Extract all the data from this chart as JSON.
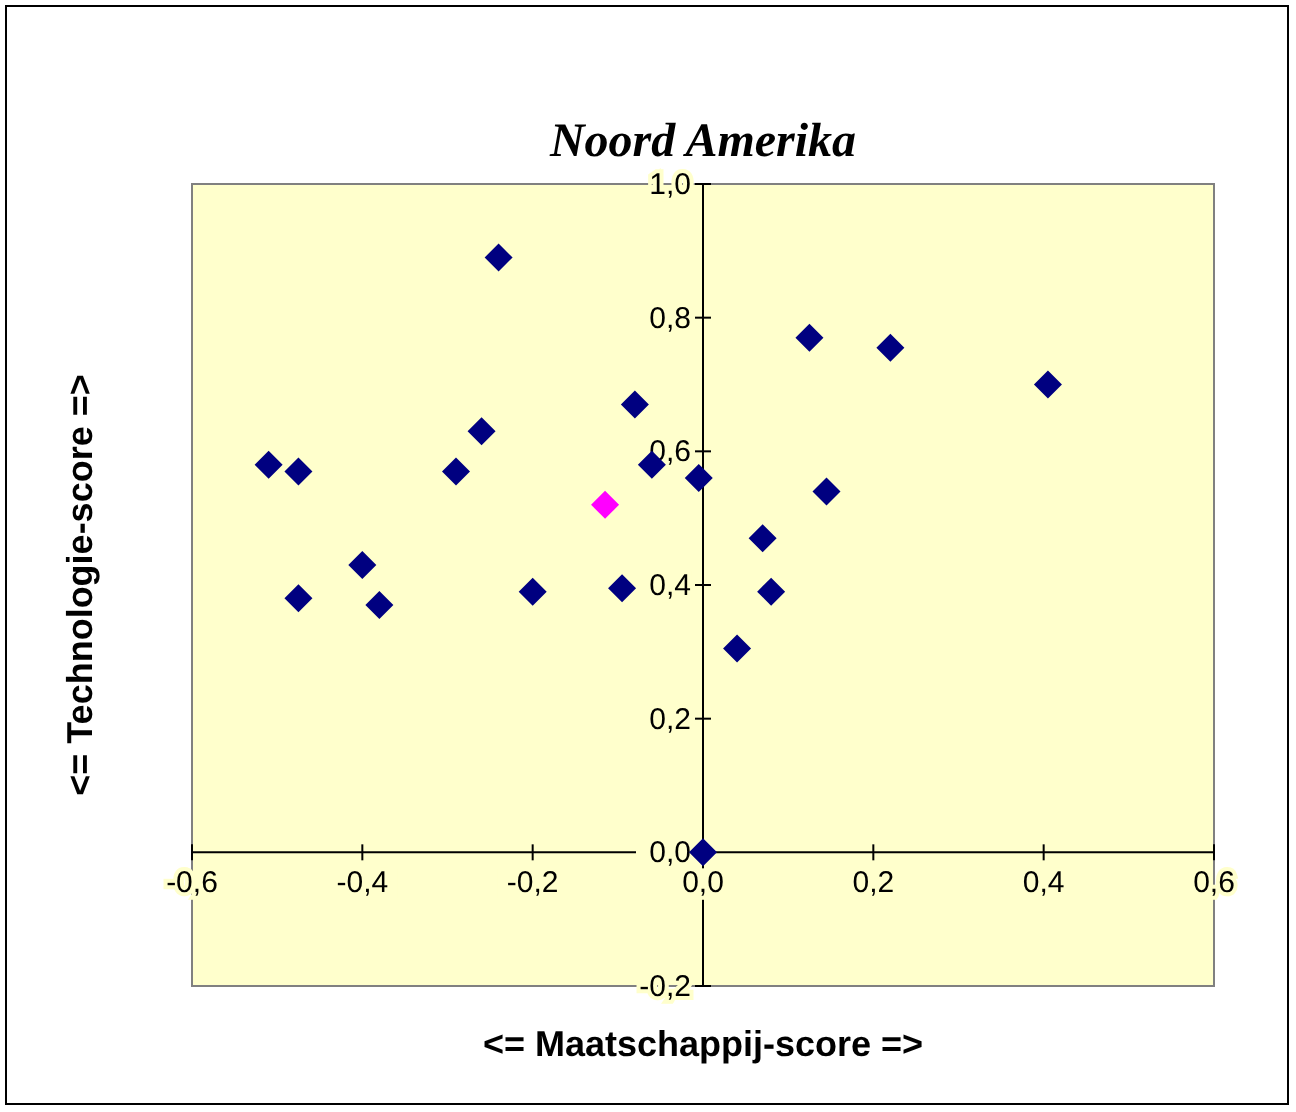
{
  "chart_data": {
    "type": "scatter",
    "title": "Noord Amerika",
    "xlabel": "<= Maatschappij-score =>",
    "ylabel": "<= Technologie-score =>",
    "xlim": [
      -0.6,
      0.6
    ],
    "ylim": [
      -0.2,
      1.0
    ],
    "xticks": [
      {
        "value": -0.6,
        "label": "-0,6"
      },
      {
        "value": -0.4,
        "label": "-0,4"
      },
      {
        "value": -0.2,
        "label": "-0,2"
      },
      {
        "value": 0,
        "label": "0,0"
      },
      {
        "value": 0.2,
        "label": "0,2"
      },
      {
        "value": 0.4,
        "label": "0,4"
      },
      {
        "value": 0.6,
        "label": "0,6"
      }
    ],
    "yticks": [
      {
        "value": -0.2,
        "label": "-0,2"
      },
      {
        "value": 0,
        "label": "0,0"
      },
      {
        "value": 0.2,
        "label": "0,2"
      },
      {
        "value": 0.4,
        "label": "0,4"
      },
      {
        "value": 0.6,
        "label": "0,6"
      },
      {
        "value": 0.8,
        "label": "0,8"
      },
      {
        "value": 1.0,
        "label": "1,0"
      }
    ],
    "grid": false,
    "marker": "diamond",
    "series": [
      {
        "color": "#000080",
        "x": [
          -0.51,
          -0.475,
          -0.475,
          -0.4,
          -0.38,
          -0.29,
          -0.26,
          -0.24,
          -0.2,
          -0.08,
          -0.06,
          -0.095,
          -0.005,
          0,
          0.07,
          0.08,
          0.04,
          0.125,
          0.145,
          0.22,
          0.405
        ],
        "values": [
          0.58,
          0.57,
          0.38,
          0.43,
          0.37,
          0.57,
          0.63,
          0.89,
          0.39,
          0.67,
          0.58,
          0.395,
          0.56,
          0,
          0.47,
          0.39,
          0.305,
          0.77,
          0.54,
          0.755,
          0.7
        ]
      },
      {
        "color": "#ff00ff",
        "x": [
          -0.115
        ],
        "values": [
          0.52
        ]
      }
    ]
  }
}
